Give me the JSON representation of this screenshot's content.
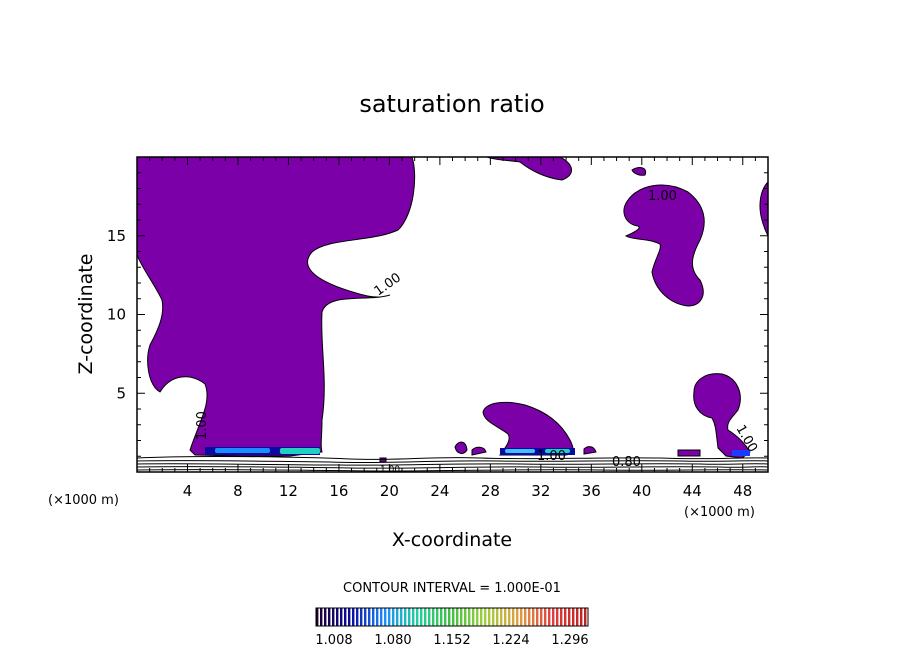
{
  "chart_data": {
    "type": "contour",
    "title": "saturation ratio",
    "xlabel": "X-coordinate",
    "ylabel": "Z-coordinate",
    "x_unit": "(×1000 m)",
    "y_unit": "(×1000 m)",
    "xlim": [
      0,
      50
    ],
    "ylim": [
      0,
      20
    ],
    "x_ticks": [
      "4",
      "8",
      "12",
      "16",
      "20",
      "24",
      "28",
      "32",
      "36",
      "40",
      "44",
      "48"
    ],
    "y_ticks": [
      "5",
      "10",
      "15"
    ],
    "contour_interval": "CONTOUR INTERVAL = 1.000E-01",
    "contour_labels": [
      "1.00",
      "1.00",
      "1.00",
      "1.00",
      "1.00",
      "0.80",
      "1.00"
    ],
    "colorbar": {
      "ticks": [
        "1.008",
        "1.080",
        "1.152",
        "1.224",
        "1.296"
      ],
      "min": 1.008,
      "max": 1.296
    },
    "colors": {
      "fill": "#7b00a8",
      "outline": "#000000",
      "colormap": [
        "#1b0030",
        "#0a0aa0",
        "#1a8cff",
        "#20d0a0",
        "#40c040",
        "#a0d040",
        "#e0a040",
        "#e04040",
        "#c02020"
      ]
    }
  }
}
